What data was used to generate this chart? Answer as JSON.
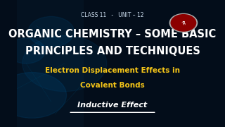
{
  "bg_color": "#030d1a",
  "class_text": "CLASS 11   -   UNIT – 12",
  "class_color": "#ccddee",
  "class_fontsize": 5.5,
  "title_line1": "ORGANIC CHEMISTRY – SOME BASIC",
  "title_line2": "PRINCIPLES AND TECHNIQUES",
  "title_color": "#ffffff",
  "title_fontsize": 10.5,
  "subtitle_line1": "Electron Displacement Effects in",
  "subtitle_line2": "Covalent Bonds",
  "subtitle_color": "#f5c518",
  "subtitle_fontsize": 7.5,
  "inductive_text": "Inductive Effect",
  "inductive_color": "#ffffff",
  "inductive_fontsize": 8.0,
  "logo_circle_color": "#8b0000",
  "logo_border_color": "#aaaaaa"
}
